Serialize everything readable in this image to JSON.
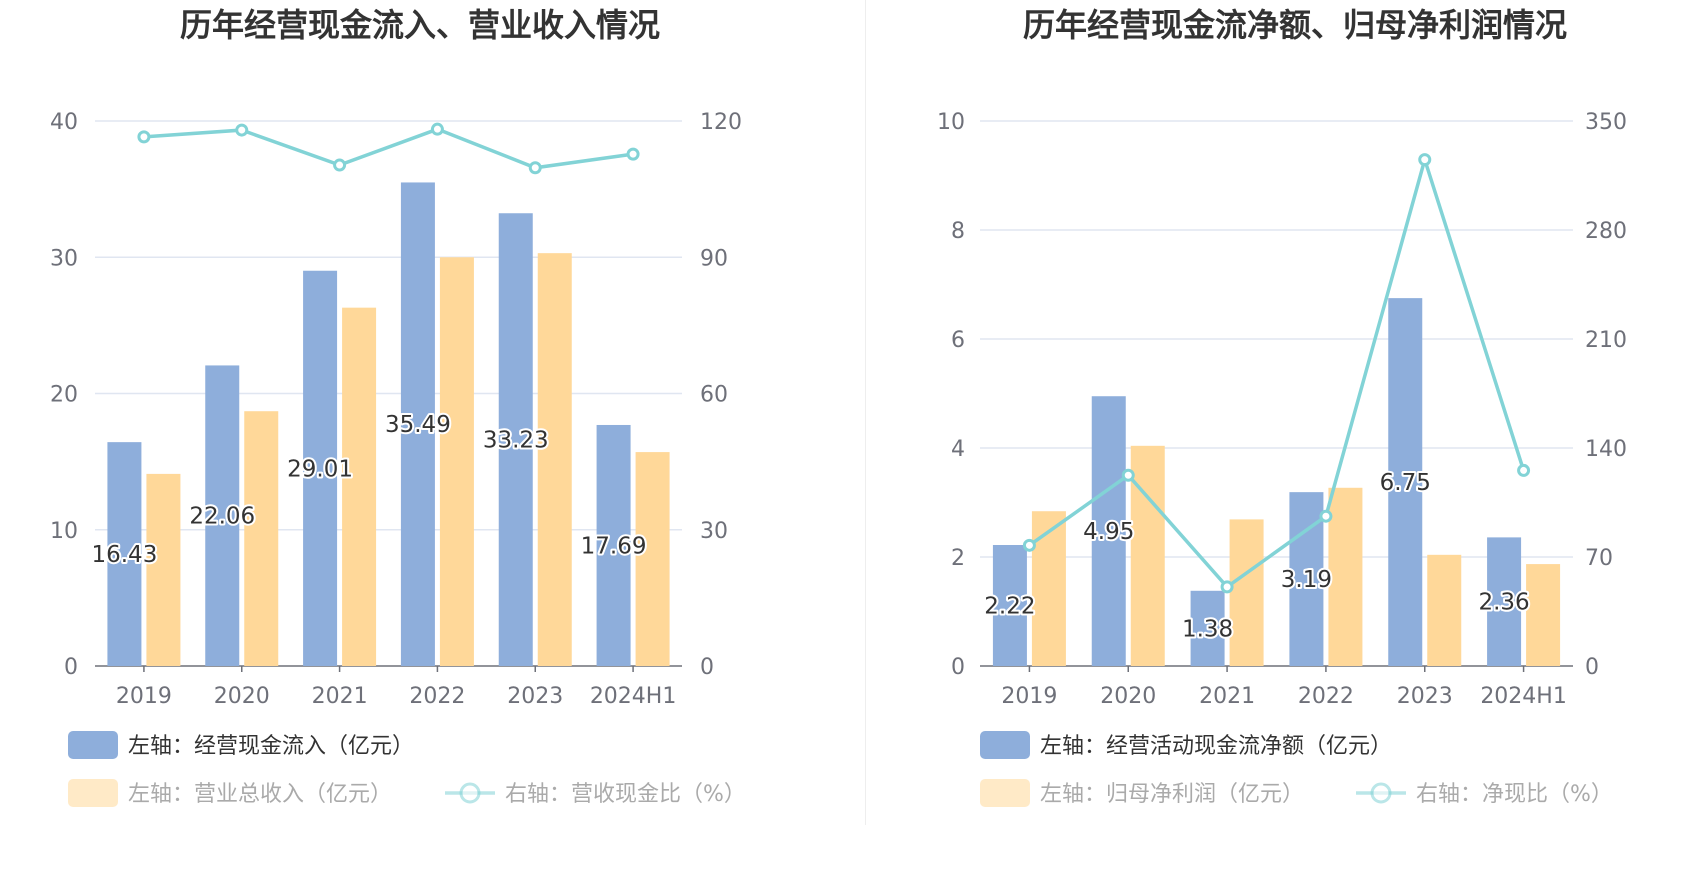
{
  "chart_data": [
    {
      "type": "bar",
      "title": "历年经营现金流入、营业收入情况",
      "categories": [
        "2019",
        "2020",
        "2021",
        "2022",
        "2023",
        "2024H1"
      ],
      "ylim_left": [
        0,
        40
      ],
      "ylim_right": [
        0,
        120
      ],
      "yticks_left": [
        "0",
        "10",
        "20",
        "30",
        "40"
      ],
      "yticks_right": [
        "0",
        "30",
        "60",
        "90",
        "120"
      ],
      "series": [
        {
          "name": "左轴：经营现金流入（亿元）",
          "axis": "left",
          "kind": "bar",
          "color": "#8eaedb",
          "values": [
            16.43,
            22.06,
            29.01,
            35.49,
            33.23,
            17.69
          ],
          "labels": [
            "16.43",
            "22.06",
            "29.01",
            "35.49",
            "33.23",
            "17.69"
          ]
        },
        {
          "name": "左轴：营业总收入（亿元）",
          "axis": "left",
          "kind": "bar",
          "color": "#ffd899",
          "values": [
            14.1,
            18.7,
            26.3,
            30.0,
            30.3,
            15.7
          ]
        },
        {
          "name": "右轴：营收现金比（%）",
          "axis": "right",
          "kind": "line",
          "color": "#82d3d6",
          "values": [
            116.5,
            118.0,
            110.3,
            118.2,
            109.7,
            112.7
          ]
        }
      ]
    },
    {
      "type": "bar",
      "title": "历年经营现金流净额、归母净利润情况",
      "categories": [
        "2019",
        "2020",
        "2021",
        "2022",
        "2023",
        "2024H1"
      ],
      "ylim_left": [
        0,
        10
      ],
      "ylim_right": [
        0,
        350
      ],
      "yticks_left": [
        "0",
        "2",
        "4",
        "6",
        "8",
        "10"
      ],
      "yticks_right": [
        "0",
        "70",
        "140",
        "210",
        "280",
        "350"
      ],
      "series": [
        {
          "name": "左轴：经营活动现金流净额（亿元）",
          "axis": "left",
          "kind": "bar",
          "color": "#8eaedb",
          "values": [
            2.22,
            4.95,
            1.38,
            3.19,
            6.75,
            2.36
          ],
          "labels": [
            "2.22",
            "4.95",
            "1.38",
            "3.19",
            "6.75",
            "2.36"
          ]
        },
        {
          "name": "左轴：归母净利润（亿元）",
          "axis": "left",
          "kind": "bar",
          "color": "#ffd899",
          "values": [
            2.84,
            4.04,
            2.69,
            3.27,
            2.04,
            1.87
          ]
        },
        {
          "name": "右轴：净现比（%）",
          "axis": "right",
          "kind": "line",
          "color": "#82d3d6",
          "values": [
            77.5,
            122.5,
            50.8,
            96.2,
            325.2,
            125.6
          ]
        }
      ]
    }
  ]
}
